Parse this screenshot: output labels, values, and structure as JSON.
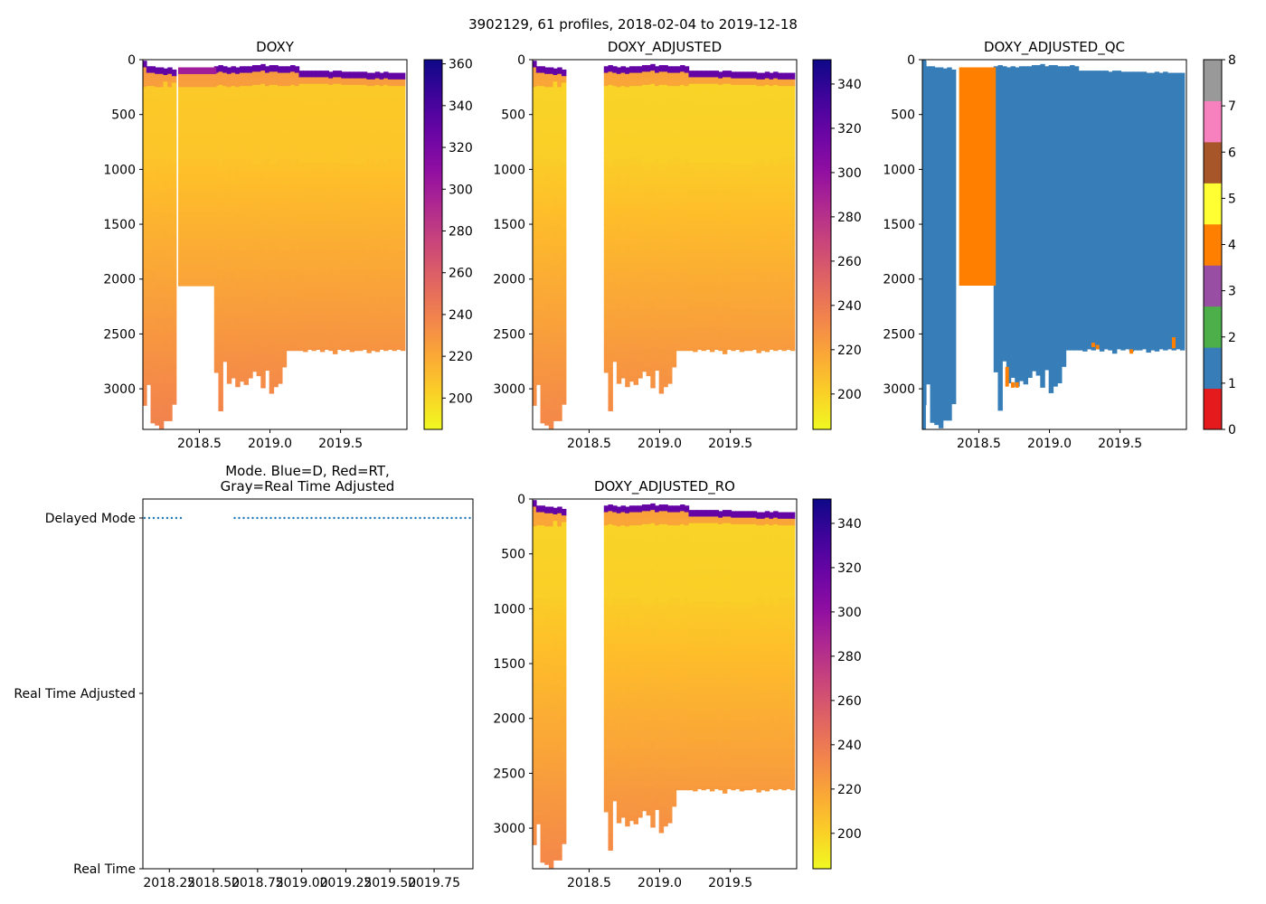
{
  "figure": {
    "suptitle": "3902129, 61 profiles, 2018-02-04 to 2019-12-18"
  },
  "colors": {
    "plasma_stops": [
      "#0d0887",
      "#5402a3",
      "#8b0aa5",
      "#b93289",
      "#db5c68",
      "#f48849",
      "#febd2a",
      "#f0f921"
    ],
    "mode_dots": "#1f77b4",
    "qc_colors": [
      "#e41a1c",
      "#377eb8",
      "#4daf4a",
      "#984ea3",
      "#ff7f00",
      "#ffff33",
      "#a65628",
      "#f781bf",
      "#999999"
    ]
  },
  "chart_data": [
    {
      "id": "doxy",
      "type": "heatmap",
      "title": "DOXY",
      "xlim": [
        2018.1,
        2019.97
      ],
      "ylim": [
        3370,
        0
      ],
      "xticks": [
        2018.5,
        2019.0,
        2019.5
      ],
      "xtick_labels": [
        "2018.5",
        "2019.0",
        "2019.5"
      ],
      "yticks": [
        0,
        500,
        1000,
        1500,
        2000,
        2500,
        3000
      ],
      "ytick_labels": [
        "0",
        "500",
        "1000",
        "1500",
        "2000",
        "2500",
        "3000"
      ],
      "colorbar": {
        "min": 185,
        "max": 362,
        "ticks": [
          200,
          220,
          240,
          260,
          280,
          300,
          320,
          340,
          360
        ],
        "tick_labels": [
          "200",
          "220",
          "240",
          "260",
          "280",
          "300",
          "320",
          "340",
          "360"
        ]
      },
      "gap": {
        "x0": 2018.35,
        "x1": 2018.62,
        "ymax": 2060
      }
    },
    {
      "id": "doxy_adj",
      "type": "heatmap",
      "title": "DOXY_ADJUSTED",
      "xlim": [
        2018.1,
        2019.97
      ],
      "ylim": [
        3370,
        0
      ],
      "xticks": [
        2018.5,
        2019.0,
        2019.5
      ],
      "xtick_labels": [
        "2018.5",
        "2019.0",
        "2019.5"
      ],
      "yticks": [
        0,
        500,
        1000,
        1500,
        2000,
        2500,
        3000
      ],
      "ytick_labels": [
        "0",
        "500",
        "1000",
        "1500",
        "2000",
        "2500",
        "3000"
      ],
      "colorbar": {
        "min": 184,
        "max": 351,
        "ticks": [
          200,
          220,
          240,
          260,
          280,
          300,
          320,
          340
        ],
        "tick_labels": [
          "200",
          "220",
          "240",
          "260",
          "280",
          "300",
          "320",
          "340"
        ]
      },
      "gap": {
        "x0": 2018.35,
        "x1": 2018.62,
        "ymax": 3370
      }
    },
    {
      "id": "doxy_qc",
      "type": "heatmap",
      "title": "DOXY_ADJUSTED_QC",
      "xlim": [
        2018.1,
        2019.97
      ],
      "ylim": [
        3370,
        0
      ],
      "xticks": [
        2018.5,
        2019.0,
        2019.5
      ],
      "xtick_labels": [
        "2018.5",
        "2019.0",
        "2019.5"
      ],
      "yticks": [
        0,
        500,
        1000,
        1500,
        2000,
        2500,
        3000
      ],
      "ytick_labels": [
        "0",
        "500",
        "1000",
        "1500",
        "2000",
        "2500",
        "3000"
      ],
      "colorbar": {
        "min": 0,
        "max": 8,
        "ticks": [
          0,
          1,
          2,
          3,
          4,
          5,
          6,
          7,
          8
        ],
        "tick_labels": [
          "0",
          "1",
          "2",
          "3",
          "4",
          "5",
          "6",
          "7",
          "8"
        ]
      },
      "qc_flag_block": {
        "x0": 2018.36,
        "x1": 2018.62,
        "y0": 70,
        "y1": 2060,
        "flag": 4
      },
      "gap": {
        "x0": 2018.35,
        "x1": 2018.62,
        "ymax": 2060
      }
    },
    {
      "id": "mode",
      "type": "scatter",
      "title_lines": [
        "Mode. Blue=D, Red=RT,",
        "Gray=Real Time Adjusted"
      ],
      "xlim": [
        2018.1,
        2019.97
      ],
      "ylim": [
        0,
        2
      ],
      "xticks": [
        2018.25,
        2018.5,
        2018.75,
        2019.0,
        2019.25,
        2019.5,
        2019.75
      ],
      "xtick_labels": [
        "2018.25",
        "2018.50",
        "2018.75",
        "2019.00",
        "2019.25",
        "2019.50",
        "2019.75"
      ],
      "yticks": [
        2,
        1,
        0
      ],
      "ytick_labels": [
        "Delayed Mode",
        "Real Time Adjusted",
        "Real Time"
      ],
      "segments": [
        {
          "x0": 2018.11,
          "x1": 2018.33,
          "level": 2
        },
        {
          "x0": 2018.62,
          "x1": 2019.96,
          "level": 2
        }
      ]
    },
    {
      "id": "doxy_ro",
      "type": "heatmap",
      "title": "DOXY_ADJUSTED_RO",
      "xlim": [
        2018.1,
        2019.97
      ],
      "ylim": [
        3370,
        0
      ],
      "xticks": [
        2018.5,
        2019.0,
        2019.5
      ],
      "xtick_labels": [
        "2018.5",
        "2019.0",
        "2019.5"
      ],
      "yticks": [
        0,
        500,
        1000,
        1500,
        2000,
        2500,
        3000
      ],
      "ytick_labels": [
        "0",
        "500",
        "1000",
        "1500",
        "2000",
        "2500",
        "3000"
      ],
      "colorbar": {
        "min": 184,
        "max": 351,
        "ticks": [
          200,
          220,
          240,
          260,
          280,
          300,
          320,
          340
        ],
        "tick_labels": [
          "200",
          "220",
          "240",
          "260",
          "280",
          "300",
          "320",
          "340"
        ]
      },
      "gap": {
        "x0": 2018.35,
        "x1": 2018.62,
        "ymax": 3370
      }
    }
  ],
  "profiles": {
    "x": [
      2018.11,
      2018.14,
      2018.17,
      2018.2,
      2018.23,
      2018.26,
      2018.29,
      2018.32,
      2018.62,
      2018.65,
      2018.68,
      2018.71,
      2018.74,
      2018.77,
      2018.8,
      2018.83,
      2018.86,
      2018.89,
      2018.92,
      2018.95,
      2018.98,
      2019.01,
      2019.04,
      2019.07,
      2019.1,
      2019.13,
      2019.16,
      2019.19,
      2019.22,
      2019.25,
      2019.28,
      2019.31,
      2019.34,
      2019.37,
      2019.4,
      2019.43,
      2019.46,
      2019.49,
      2019.52,
      2019.55,
      2019.58,
      2019.61,
      2019.64,
      2019.67,
      2019.7,
      2019.73,
      2019.76,
      2019.79,
      2019.82,
      2019.85,
      2019.88,
      2019.91,
      2019.94
    ],
    "surface_depth": [
      10,
      60,
      60,
      70,
      70,
      80,
      70,
      90,
      60,
      50,
      60,
      70,
      60,
      70,
      60,
      60,
      60,
      50,
      50,
      40,
      60,
      50,
      50,
      60,
      60,
      60,
      50,
      60,
      100,
      100,
      100,
      100,
      100,
      100,
      100,
      110,
      100,
      100,
      110,
      110,
      110,
      110,
      110,
      110,
      120,
      120,
      110,
      120,
      110,
      120,
      120,
      120,
      120
    ],
    "max_depth": [
      3150,
      2960,
      3310,
      3330,
      3360,
      3290,
      3290,
      3140,
      2850,
      3200,
      2750,
      2950,
      2900,
      2980,
      2930,
      2960,
      2900,
      2840,
      2880,
      2990,
      2830,
      3040,
      2980,
      2950,
      2800,
      2650,
      2650,
      2650,
      2650,
      2660,
      2640,
      2650,
      2640,
      2660,
      2640,
      2650,
      2680,
      2640,
      2650,
      2640,
      2660,
      2650,
      2650,
      2640,
      2670,
      2650,
      2660,
      2640,
      2650,
      2640,
      2650,
      2640,
      2650
    ],
    "qc4_spots": [
      {
        "x": 2018.7,
        "y0": 2800,
        "y1": 2980
      },
      {
        "x": 2018.74,
        "y0": 2940,
        "y1": 2990
      },
      {
        "x": 2018.77,
        "y0": 2940,
        "y1": 2990
      },
      {
        "x": 2019.31,
        "y0": 2580,
        "y1": 2620
      },
      {
        "x": 2019.34,
        "y0": 2600,
        "y1": 2640
      },
      {
        "x": 2019.58,
        "y0": 2640,
        "y1": 2680
      },
      {
        "x": 2019.88,
        "y0": 2530,
        "y1": 2630
      }
    ]
  }
}
